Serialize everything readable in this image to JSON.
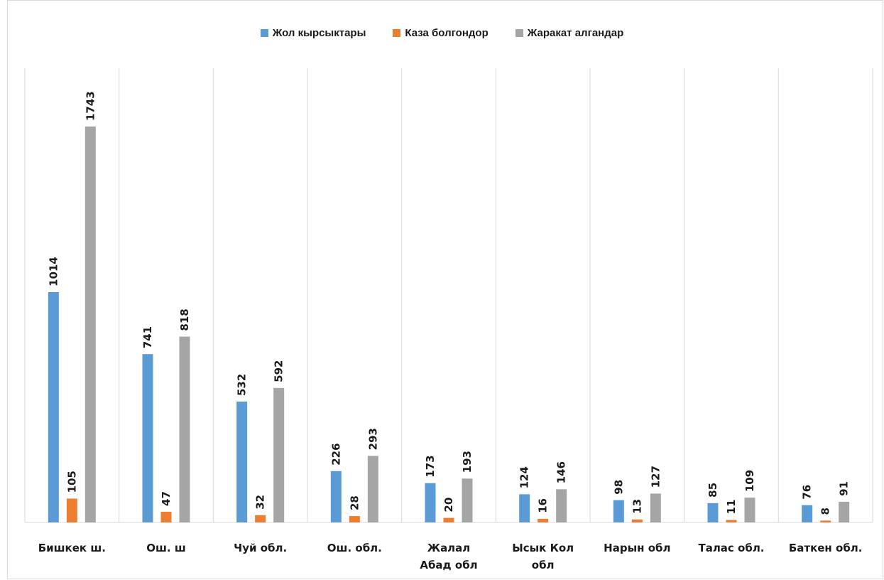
{
  "chart_data": {
    "type": "bar",
    "categories": [
      [
        "Бишкек ш."
      ],
      [
        "Ош. ш"
      ],
      [
        "Чуй обл."
      ],
      [
        "Ош. обл."
      ],
      [
        "Жалал",
        "Абад обл"
      ],
      [
        "Ысык Кол",
        "обл"
      ],
      [
        "Нарын обл"
      ],
      [
        "Талас обл."
      ],
      [
        "Баткен обл."
      ]
    ],
    "series": [
      {
        "name": "Жол кырсыктары",
        "color": "#5b9bd5",
        "values": [
          1014,
          741,
          532,
          226,
          173,
          124,
          98,
          85,
          76
        ]
      },
      {
        "name": "Каза болгондор",
        "color": "#ed7d31",
        "values": [
          105,
          47,
          32,
          28,
          20,
          16,
          13,
          11,
          8
        ]
      },
      {
        "name": "Жаракат алгандар",
        "color": "#a5a5a5",
        "values": [
          1743,
          818,
          592,
          293,
          193,
          146,
          127,
          109,
          91
        ]
      }
    ],
    "ylim": [
      0,
      2000
    ],
    "grid": "vertical category separators",
    "legend": "top-center",
    "data_labels": "rotated vertical above bars"
  }
}
